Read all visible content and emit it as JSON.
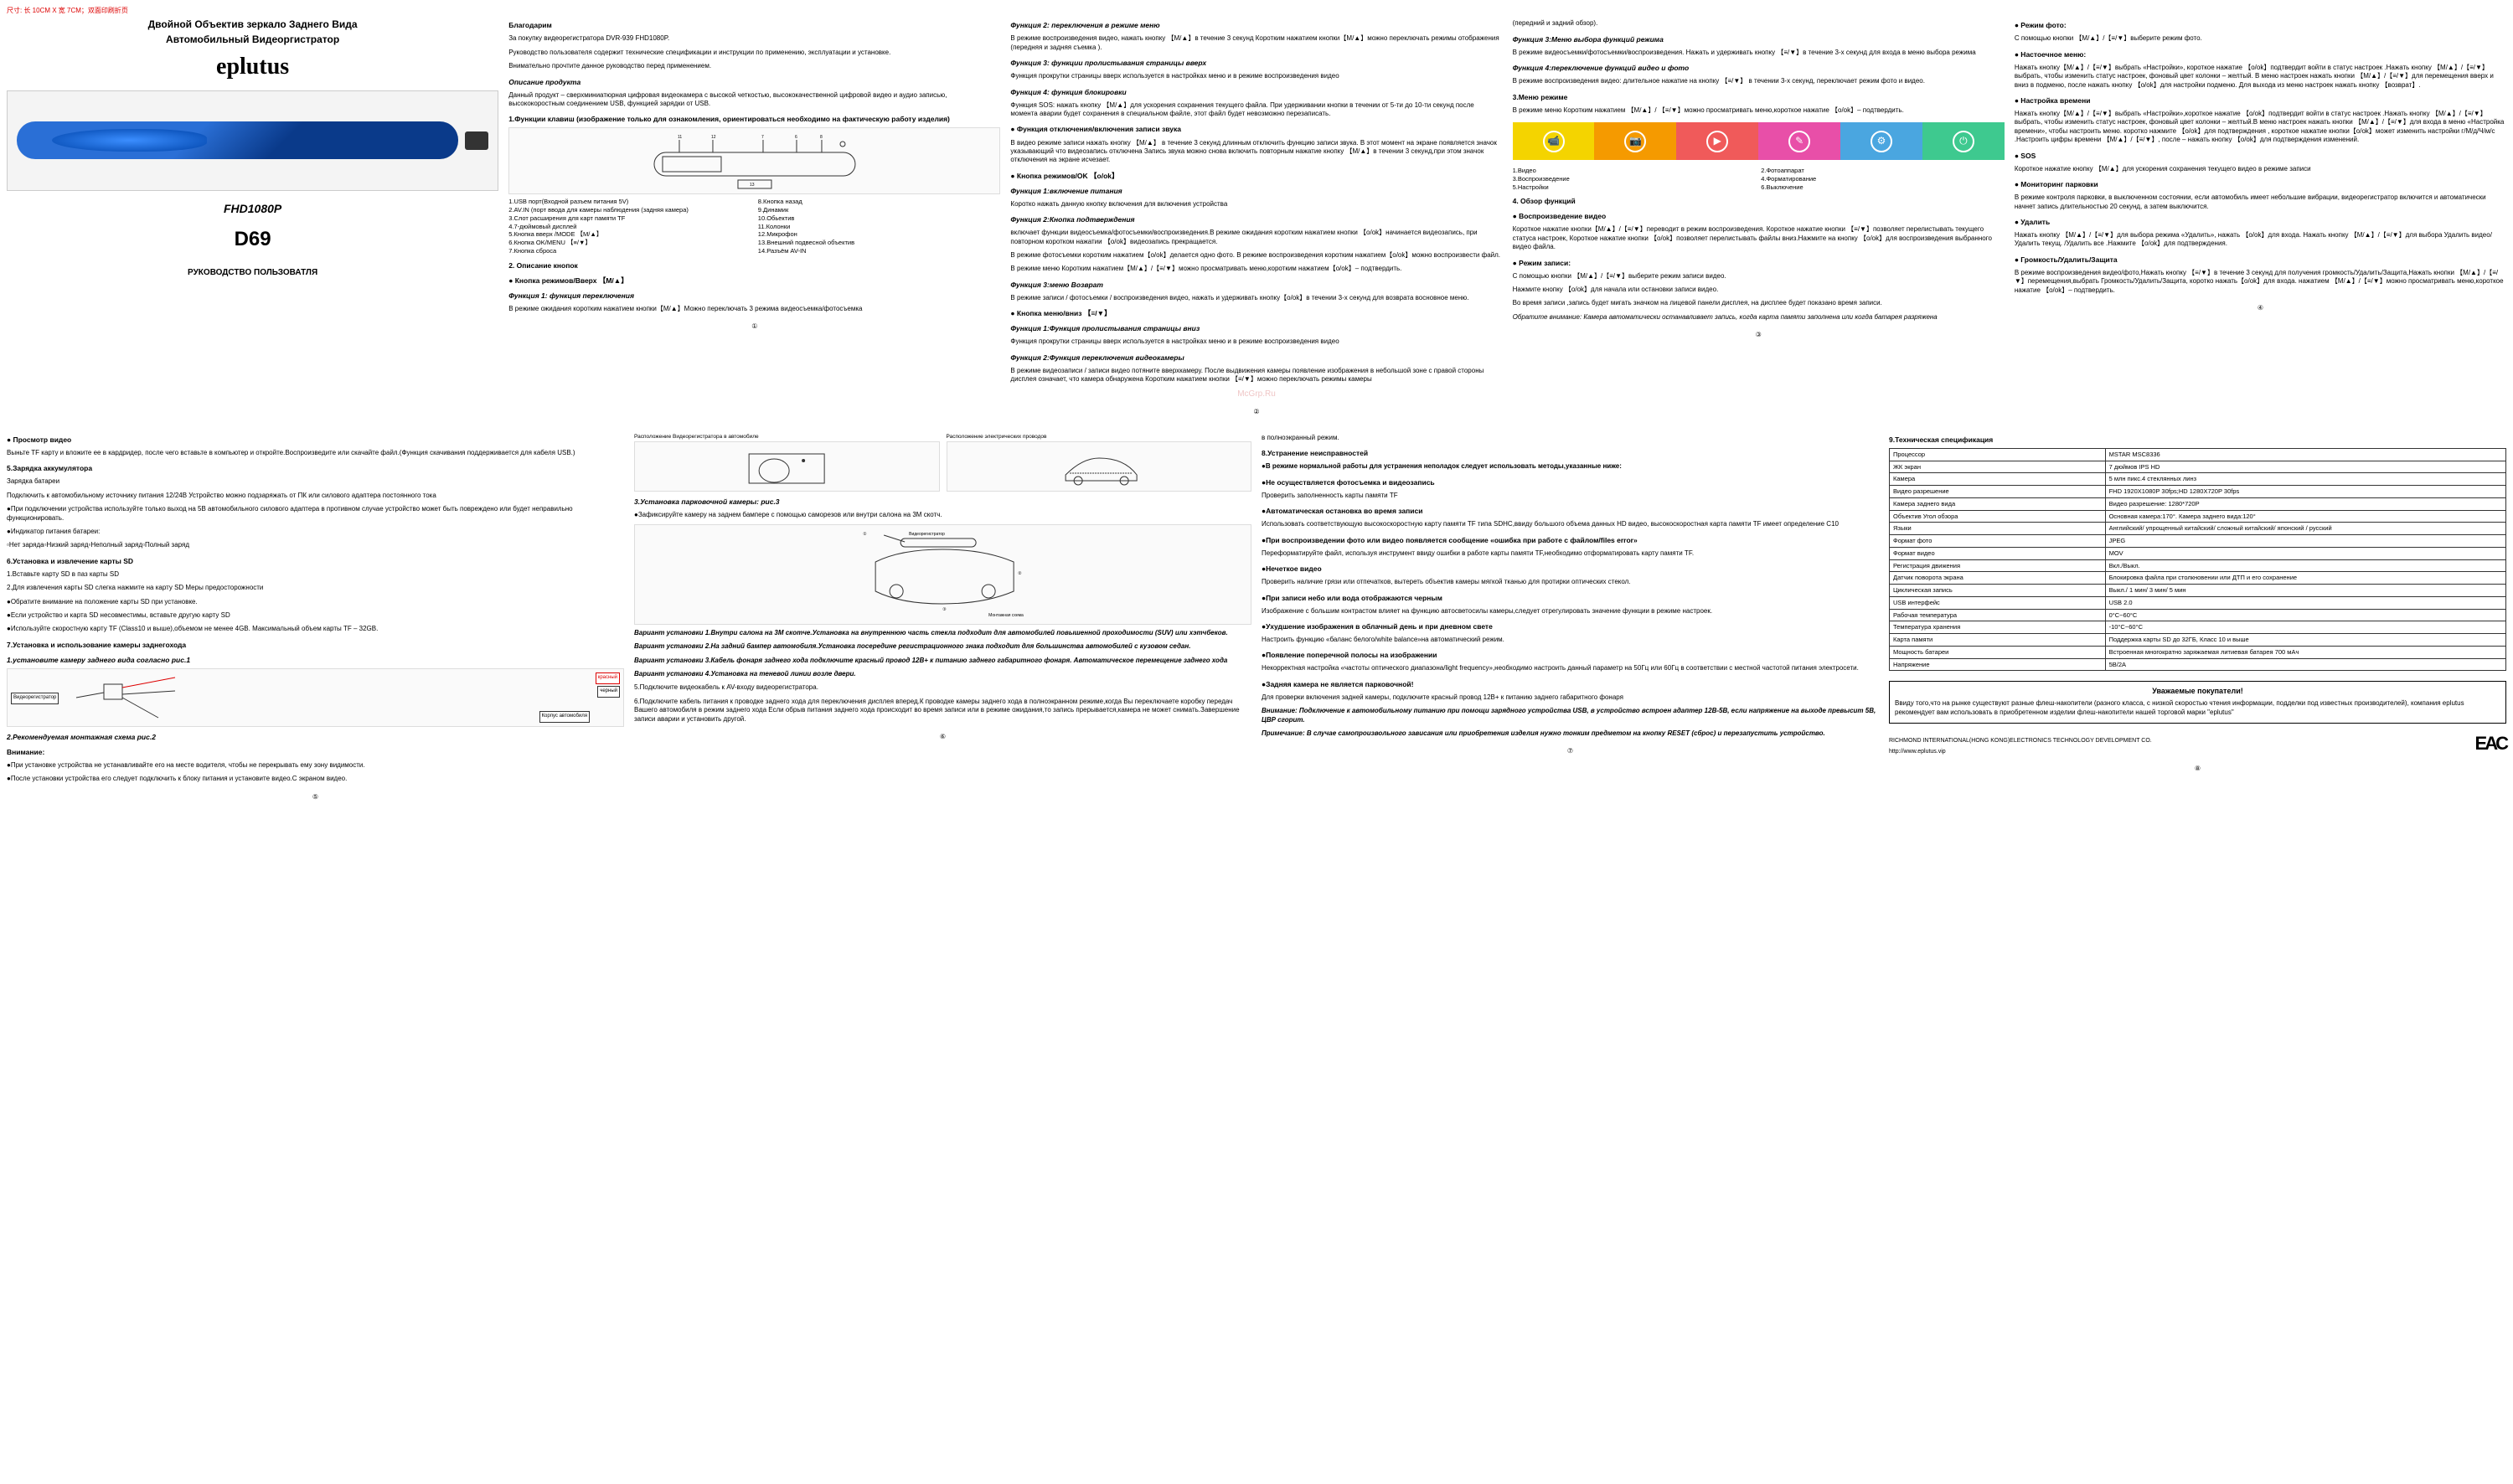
{
  "header_note": "尺寸: 长 10CM X 宽 7CM；双面印刷折页",
  "col1": {
    "title1": "Двойной Объектив зеркало Заднего Вида",
    "title2": "Автомобильный Видеоргистратор",
    "brand": "eplutus",
    "model_line": "FHD1080P",
    "model": "D69",
    "subtitle": "РУКОВОДСТВО ПОЛЬЗОВАТЛЯ"
  },
  "col2": {
    "h_thanks": "Благодарим",
    "p_thanks1": "За покупку видеорегистратора DVR-939 FHD1080P.",
    "p_thanks2": "Руководство пользователя содержит технические спецификации и инструкции по применению, эксплуатации и установке.",
    "p_thanks3": "Внимательно прочтите данное руководство перед применением.",
    "h_desc": "Описание продукта",
    "p_desc": "Данный продукт – сверхминиатюрная цифровая видеокамера с высокой четкостью, высококачественной цифровой видео и аудио записью, высококоростным соединением USB, функцией зарядки от USB.",
    "h_func": "1.Функции клавиш (изображение только для ознакомления, ориентироваться необходимо на фактическую работу изделия)",
    "parts": [
      "1.USB порт(Входной разъем питания 5V)",
      "8.Кнопка назад",
      "2.AV.IN (порт ввода для камеры наблюдения (задняя камера)",
      "9.Динамик",
      "3.Слот расширения для карт памяти TF",
      "10.Обьектив",
      "4.7-дюймовый дисплей",
      "11.Колонки",
      "5.Кнопка вверх /MODE 【M/▲】",
      "12.Микрофон",
      "6.Кнопка OK/MENU 【≡/▼】",
      "13.Внешний подвесной объектив",
      "7.Кнопка сброса",
      "14.Разъём AV-IN"
    ],
    "h_key": "2. Описание кнопок",
    "h_modebtn": "● Кнопка режимов/Вверх 【M/▲】",
    "h_f1": "Функция 1: функция переключения",
    "p_f1": "В режиме ожидания коротким нажатием кнопки【M/▲】Можно переключать 3 режима видеосъемка/фотосъемка"
  },
  "col3": {
    "h_f2": "Функция 2: переключения в режиме меню",
    "p_f2": "В режиме воспроизведения видео, нажать кнопку 【M/▲】в течение 3 секунд Коротким нажатием кнопки【M/▲】можно переключать режимы отображения (передняя и задняя съемка ).",
    "h_f3": "Функция 3: функции пролистывания страницы вверх",
    "p_f3": "Функция прокрутки страницы вверх используется в настройках меню и в режиме воспроизведения видео",
    "h_f4": "Функция 4: функция блокировки",
    "p_f4": "Функция SOS: нажать кнопку 【M/▲】для ускорения сохранения текущего файла. При удерживании кнопки в течении от 5-ти до 10-ти секунд после момента аварии будет сохранения в специальном файле, этот файл будет невозможно перезаписать.",
    "h_audio": "● Функция отключения/включения записи звука",
    "p_audio": "В видео режиме записи нажать кнопку 【M/▲】 в течение 3 секунд длинным отключить функцию записи звука. В этот момент на экране появляется значок указывающий что видеозапись отключена Запись звука можно снова включить повторным нажатие кнопку 【M/▲】в течении 3 секунд,при этом значок отключения на экране исчезает.",
    "h_okbtn": "● Кнопка режимов/OK 【o/ok】",
    "h_f1b": "Функция 1:включение питания",
    "p_f1b": "Коротко нажать данную кнопку включения для включения устройства",
    "h_f2b": "Функция 2:Кнопка подтверждения",
    "p_f2b": "включает функции видеосъемка/фотосъемки/воспроизведения.В режиме ожидания коротким нажатием кнопки 【o/ok】начинается видеозапись, при повторном коротком нажатии 【o/ok】видеозапись прекращается.",
    "p_f2c": "В режиме фотосъемки коротким нажатием【o/ok】делается одно фото. В режиме воспроизведения коротким нажатием【o/ok】можно воспроизвести файл.",
    "p_f2d": "В режиме меню Коротким нажатием【M/▲】/【≡/▼】можно просматривать меню,коротким нажатием【o/ok】– подтвердить.",
    "h_f3b": "Функция 3:меню Возврат",
    "p_f3b": "В режиме записи / фотосъемки / воспроизведения видео, нажать и удерживать кнопку【o/ok】в течении 3-х секунд для возврата восновное меню.",
    "h_menubtn": "● Кнопка меню/вниз 【≡/▼】",
    "h_f1c": "Функция 1:Функция пролистывания страницы вниз",
    "p_f1c": "Функция прокрутки страницы вверх используется в настройках меню и в режиме воспроизведения видео",
    "h_f2c": "Функция 2:Функция переключения видеокамеры",
    "p_f2e": "В режиме видеозаписи / записи видео потяните вверхкамеру. После выдвижения камеры появление изображения в небольшой зоне с правой стороны дисплея означает, что камера обнаружена Коротким нажатием кнопки 【≡/▼】можно переключать режимы камеры"
  },
  "col4": {
    "p_top": "(передний и задний обзор).",
    "h_f3": "Функция 3:Меню выбора функций режима",
    "p_f3": "В режиме видеосъемки/фотосъемки/воспроизведения. Нажать и удерживать кнопку 【≡/▼】в течение 3-х секунд для входа в меню выбора режима",
    "h_f4": "Функция 4:переключение функций видео и фото",
    "p_f4": "В режиме воспроизведения видео: длительное нажатие на кнопку 【≡/▼】 в течении 3-х секунд, переключает режим фото и видео.",
    "h_menureg": "3.Меню режиме",
    "p_menureg": "В режиме меню Коротким нажатием 【M/▲】/ 【≡/▼】можно просматривать меню,короткое нажатие 【o/ok】– подтвердить.",
    "icons": [
      {
        "bg": "#f4d400",
        "glyph": "📹"
      },
      {
        "bg": "#f59a00",
        "glyph": "📷"
      },
      {
        "bg": "#f05a5a",
        "glyph": "▶"
      },
      {
        "bg": "#e84fa8",
        "glyph": "✎"
      },
      {
        "bg": "#4aa6e0",
        "glyph": "⚙"
      },
      {
        "bg": "#3ec98f",
        "glyph": "⏻"
      }
    ],
    "legend": [
      "1.Видео",
      "2.Фотоаппарат",
      "3.Воспроизведение",
      "4.Форматирование",
      "5.Настройки",
      "6.Выключение"
    ],
    "h_overview": "4. Обзор функций",
    "h_play": "● Воспроизведение видео",
    "p_play": "Короткое нажатие кнопки【M/▲】/【≡/▼】переводит в режим воспроизведения. Короткое нажатие кнопки 【≡/▼】позволяет перелистывать текущего статуса настроек, Короткое нажатие кнопки 【o/ok】позволяет перелистывать файлы вниз.Нажмите на кнопку 【o/ok】для воспроизведения выбранного видео файла.",
    "h_rec": "● Режим записи:",
    "p_rec1": "С помощью кнопки 【M/▲】/【≡/▼】выберите режим записи видео.",
    "p_rec2": "Нажмите кнопку 【o/ok】для начала или остановки записи видео.",
    "p_rec3": "Во время записи ,запись будет мигать значком на лицевой панели дисплея, на дисплее будет показано время записи.",
    "p_note": "Обратите внимание: Камера автоматически останавливает запись, когда карта памяти заполнена или когда батарея разряжена"
  },
  "col5": {
    "h_photo": "● Режим фото:",
    "p_photo": "С помощью кнопки 【M/▲】/【≡/▼】выберите режим фото.",
    "h_setmenu": "● Настоечное меню:",
    "p_setmenu": "Нажать кнопку【M/▲】/【≡/▼】выбрать «Настройки», короткое нажатие 【o/ok】подтвердит войти в статус настроек .Нажать кнопку 【M/▲】/【≡/▼】выбрать, чтобы изменить статус настроек, фоновый цвет колонки – желтый. В меню настроек нажать кнопки 【M/▲】/【≡/▼】для перемещения вверх и вниз в подменю, после нажать кнопку 【o/ok】для настройки подменю. Для выхода из меню настроек нажать кнопку 【возврат】.",
    "h_time": "● Настройка времени",
    "p_time": "Нажать кнопку【M/▲】/【≡/▼】выбрать «Настройки»,короткое нажатие 【o/ok】подтвердит войти в статус настроек .Нажать кнопку 【M/▲】/【≡/▼】выбрать, чтобы изменить статус настроек, фоновый цвет колонки – желтый.В меню настроек нажать кнопки 【M/▲】/【≡/▼】для входа в меню «Настройка времени», чтобы настроить меню. коротко нажмите 【o/ok】для подтверждения , короткое нажатие кнопки【o/ok】может изменить настройки г/М/д/Ч/м/с .Настроить цифры времени 【M/▲】/【≡/▼】, после – нажать кнопку 【o/ok】для подтверждения изменений.",
    "h_sos": "● SOS",
    "p_sos": "Короткое нажатие кнопку 【M/▲】для ускорения сохранения текущего видео в режиме записи",
    "h_park": "● Мониторинг парковки",
    "p_park": "В режиме контроля парковки, в выключенном состоянии, если автомобиль имеет небольшие вибрации, видеорегистратор включится и автоматически начнет запись длительностью 20 секунд, а затем выключится.",
    "h_del": "● Удалить",
    "p_del": "Нажать кнопку 【M/▲】/【≡/▼】для выбора режима «Удалить», нажать 【o/ok】для входа. Нажать кнопку 【M/▲】/【≡/▼】для выбора Удалить видео/Удалить текущ. /Удалить все .Нажмите 【o/ok】для подтверждения.",
    "h_vol": "● Громкость/Удалить/Защита",
    "p_vol": "В режиме воспроизведения видео/фото,Нажать кнопку 【≡/▼】в течение 3 секунд для получения громкость/Удалить/Защита,Нажать кнопки 【M/▲】/【≡/▼】перемещения,выбрать Громкость/Удалить/Защита, коротко нажать【o/ok】для входа. нажатием 【M/▲】/【≡/▼】можно просматривать меню,короткое нажатие 【o/ok】– подтвердить."
  },
  "page2": {
    "col1": {
      "h_view": "● Просмотр видео",
      "p_view": "Выньте TF карту и вложите ее в кардридер, после чего вставьте в компьютер и откройте.Воспроизведите или скачайте файл.(Функция скачивания поддерживается для кабеля USB.)",
      "h_charge": "5.Зарядка аккумулятора",
      "p_charge1": "Зарядка батареи",
      "p_charge2": "Подключить к автомобильному источнику питания 12/24В Устройство можно подзаряжать от ПК или силового адаптера постоянного тока",
      "p_charge3": "●При подключении устройства используйте только выход на 5В автомобильного силового адаптера в противном случае устройство может быть повреждено или будет неправильно функционировать.",
      "p_ind": "●Индикатор питания батареи:",
      "p_ind2": "▫Нет заряда▫Низкий заряд▫Неполный заряд▫Полный заряд",
      "h_sd": "6.Установка и извлечение карты SD",
      "p_sd1": "1.Вставьте карту SD в паз карты SD",
      "p_sd2": "2.Для извлечения карты SD слегка нажмите на карту SD Меры предосторожности",
      "p_sd3": "●Обратите внимание на положение карты SD при установке.",
      "p_sd4": "●Если устройство и карта SD несовместимы, вставьте другую карту SD",
      "p_sd5": "●Используйте скоростную карту TF (Class10 и выше),объемом не менее 4GB. Максимальный объем карты TF – 32GB.",
      "h_inst": "7.Установка и использование камеры заднегохода",
      "h_inst1": "1.установите камеру заднего вида согласно рис.1",
      "h_wiring": "2.Рекомендуемая монтажная схема рис.2",
      "h_warn": "Внимание:",
      "p_warn1": "●При установке устройства не устанавливайте его на месте водителя, чтобы не перекрывать ему зону видимости.",
      "p_warn2": "●После установки устройства его следует подключить к блоку питания и установите видео.С экраном видео."
    },
    "col2": {
      "p_loc1": "Расположение Видеорегистратора в автомобиле",
      "p_loc2": "Расположение электрических проводов",
      "h_inst3": "3.Установка парковочной камеры: рис.3",
      "p_inst3": "●Зафиксируйте камеру на заднем бампере с помощью саморезов или внутри салона на 3М скотч.",
      "h_var1": "Вариант установки 1.Внутри салона на 3М скотче.Установка на внутреннюю часть стекла подходит для автомобилей повышенной проходимости (SUV) или хэтчбеков.",
      "h_var2": "Вариант установки 2.На задний бампер автомобиля.Установка посередине регистрационного знака подходит для большинства автомобилей с кузовом седан.",
      "h_var3": "Вариант установки 3.Кабель фонаря заднего хода подключите красный провод 12В+ к питанию заднего габаритного фонаря. Автоматическое перемещение заднего хода",
      "h_var4": "Вариант установки 4.Установка на теневой линии возле двери.",
      "p_5": "5.Подключите видеокабель к AV-входу видеорегистратора.",
      "p_6": "6.Подключите кабель питания к проводке заднего хода для переключения дисплея вперед.К проводке камеры заднего хода в полноэкранном режиме,когда Вы переключаете коробку передач Вашего автомобиля в режим заднего хода Если обрыв питания заднего хода происходит во время записи или в режиме ожидания,то запись прерывается,камера не может снимать.Завершение записи аварии и установить другой."
    },
    "col3": {
      "p_full": "в полноэкранный режим.",
      "h_fault": "8.Устранение неисправностей",
      "p_fault": "●В режиме нормальной работы для устранения неполадок следует использовать методы,указанные ниже:",
      "h_nf1": "●Не осуществляется фотосъемка и видеозапись",
      "p_nf1": "Проверить заполненность карты памяти TF",
      "h_nf2": "●Автоматическая остановка во время записи",
      "p_nf2": "Использовать соответствующую высокоскоростную карту памяти TF типа SDHC,ввиду большого объема данных HD видео, высокоскоростная карта памяти TF имеет определение С10",
      "h_nf3": "●При воспроизведении фото или видео появляется сообщение «ошибка при работе с файлом/files error»",
      "p_nf3": "Переформатируйте файл, используя инструмент ввиду ошибки в работе карты памяти TF,необходимо отформатировать карту памяти TF.",
      "h_nf4": "●Нечеткое видео",
      "p_nf4": "Проверить наличие грязи или отпечатков, вытереть объектив камеры мягкой тканью для протирки оптических стекол.",
      "h_nf5": "●При записи небо или вода отображаются черным",
      "p_nf5": "Изображение с большим контрастом влияет на функцию автосветосилы камеры,следует отрегулировать значение функции в режиме настроек.",
      "h_nf6": "●Ухудшение изображения в облачный день и при дневном свете",
      "p_nf6": "Настроить функцию «баланс белого/white balance»на автоматический режим.",
      "h_nf7": "●Появление поперечной полосы на изображении",
      "p_nf7": "Некорректная настройка «частоты оптического диапазона/light frequency»,необходимо настроить данный параметр на 50Гц или 60Гц в соответствии с местной частотой питания электросети.",
      "h_nf8": "●Задняя камера не является парковочной!",
      "p_nf8": "Для проверки включения задней камеры, подключите красный провод 12В+ к питанию заднего габаритного фонаря",
      "p_warn": "Внимание: Подключение к автомобильному питанию при помощи зарядного устройства USB, в устройство встроен адаптер 12В-5В, если напряжение на выходе превысит 5В, ЦВР сгорит.",
      "p_note": "Примечание: В случае самопроизвольного зависания или приобретения изделия нужно тонким предметом на кнопку RESET (сброс) и перезапустить устройство."
    },
    "col4": {
      "h_spec": "9.Техническая спецификация",
      "specs": [
        [
          "Процессор",
          "MSTAR MSC8336"
        ],
        [
          "ЖК экран",
          "7 дюймов IPS HD"
        ],
        [
          "Камера",
          "5 млн пикс.4 стеклянных линз"
        ],
        [
          "Видео разрешение",
          "FHD 1920X1080P 30fps;HD 1280X720P 30fps"
        ],
        [
          "Камера заднего вида",
          "Видео разрешение: 1280*720P"
        ],
        [
          "Объектив Угол обзора",
          "Основная камера:170°. Камера заднего вида:120°"
        ],
        [
          "Языки",
          "Английский/ упрощенный китайский/ сложный китайский/ японский / русский"
        ],
        [
          "Формат фото",
          "JPEG"
        ],
        [
          "Формат видео",
          "MOV"
        ],
        [
          "Регистрация движения",
          "Вкл./Выкл."
        ],
        [
          "Датчик поворота экрана",
          "Блокировка файла при столкновении или ДТП и его сохранение"
        ],
        [
          "Циклическая запись",
          "Выкл./ 1 мин/ 3 мин/ 5 мин"
        ],
        [
          "USB интерфейс",
          "USB 2.0"
        ],
        [
          "Рабочая температура",
          "0°С~60°С"
        ],
        [
          "Температура хранения",
          "-10°С~60°С"
        ],
        [
          "Карта памяти",
          "Поддержка карты SD до 32ГБ, Класс 10 и выше"
        ],
        [
          "Мощность батареи",
          "Встроенная многократно заряжаемая литиевая батарея 700 мАч"
        ],
        [
          "Напряжение",
          "5В/2A"
        ]
      ],
      "notice_title": "Уважаемые покупатели!",
      "notice_body": "Ввиду того,что на рынке существуют разные флеш-накопители (разного класса, с низкой скоростью чтения информации, подделки под известных производителей), компания eplutus рекомендует вам использовать в приобретенном изделии флеш-накопители нашей торговой марки \"eplutus\"",
      "footer": "RICHMOND INTERNATIONAL(HONG KONG)ELECTRONICS TECHNOLOGY DEVELOPMENT CO.",
      "url": "http://www.eplutus.vip"
    }
  },
  "watermark": "McGrp.Ru",
  "page_nums": [
    "①",
    "②",
    "③",
    "④",
    "⑤",
    "⑥",
    "⑦",
    "⑧"
  ]
}
